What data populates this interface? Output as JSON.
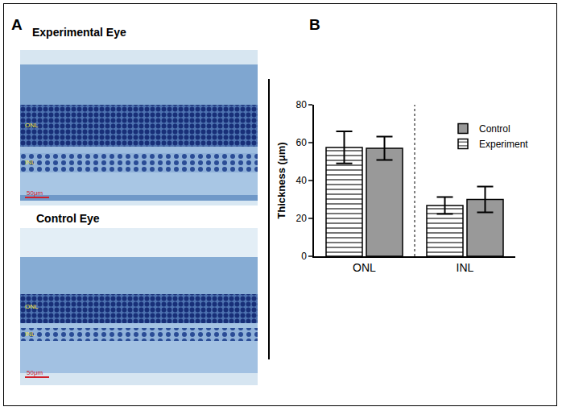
{
  "panels": {
    "A": {
      "label": "A",
      "images": [
        {
          "title": "Experimental Eye",
          "layers": [
            "ONL",
            "INL"
          ],
          "scale_bar": "50μm"
        },
        {
          "title": "Control Eye",
          "layers": [
            "ONL",
            "INL"
          ],
          "scale_bar": "50μm"
        }
      ]
    },
    "B": {
      "label": "B"
    }
  },
  "chart_data": {
    "type": "bar",
    "categories": [
      "ONL",
      "INL"
    ],
    "y_label": "Thickness (μm)",
    "series": [
      {
        "name": "Experiment",
        "color": "#ffffff",
        "marker": "hatched",
        "values": [
          57.5,
          26.8
        ],
        "errors": [
          8.5,
          4.5
        ]
      },
      {
        "name": "Control",
        "color": "#999999",
        "marker": "solid",
        "values": [
          57,
          30
        ],
        "errors": [
          6.2,
          6.8
        ]
      }
    ],
    "ylim": [
      0,
      80
    ],
    "yticks": [
      0,
      20,
      40,
      60,
      80
    ],
    "grid": false,
    "legend": "upper right"
  }
}
